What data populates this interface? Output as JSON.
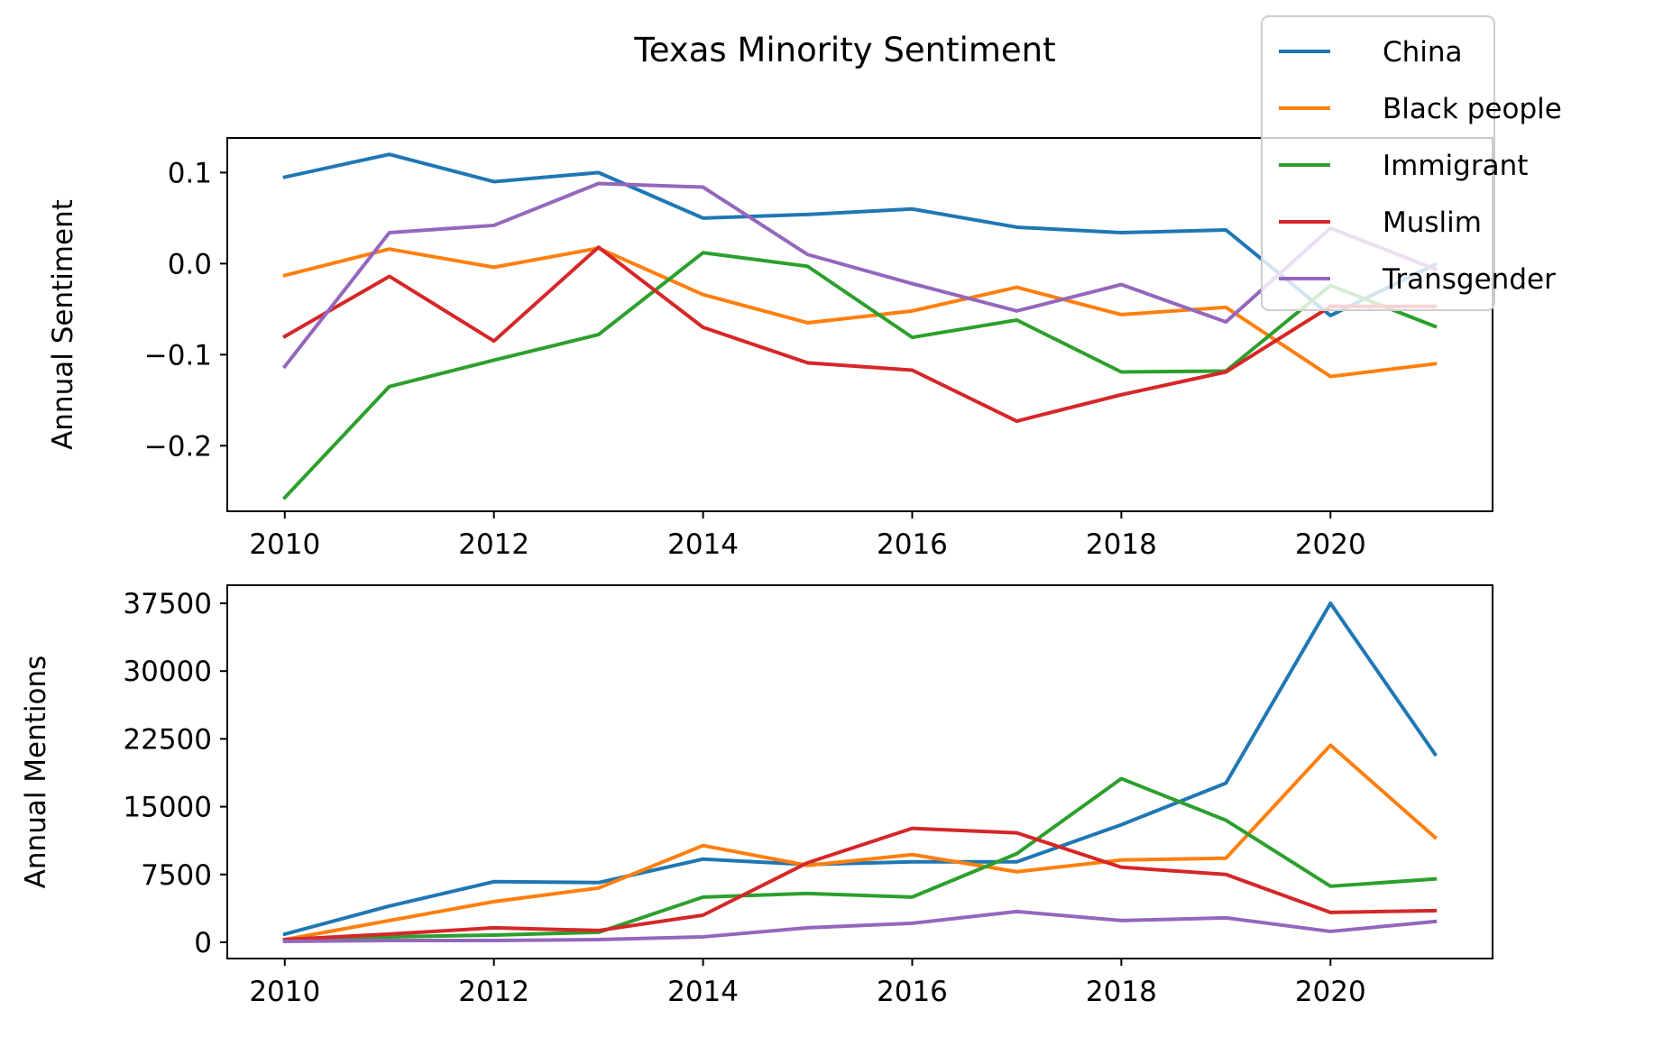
{
  "figure": {
    "title": "Texas Minority Sentiment"
  },
  "legend": {
    "placement": "top-right",
    "entries": [
      {
        "name": "China",
        "color": "#1f77b4"
      },
      {
        "name": "Black people",
        "color": "#ff7f0e"
      },
      {
        "name": "Immigrant",
        "color": "#2ca02c"
      },
      {
        "name": "Muslim",
        "color": "#d62728"
      },
      {
        "name": "Transgender",
        "color": "#9467bd"
      }
    ]
  },
  "chart_data": [
    {
      "type": "line",
      "ylabel": "Annual Sentiment",
      "xlabel": "",
      "x": [
        2010,
        2011,
        2012,
        2013,
        2014,
        2015,
        2016,
        2017,
        2018,
        2019,
        2020,
        2021
      ],
      "xlim": [
        2009.45,
        2021.55
      ],
      "ylim": [
        -0.272,
        0.138
      ],
      "xticks": [
        2010,
        2012,
        2014,
        2016,
        2018,
        2020
      ],
      "xtick_labels": [
        "2010",
        "2012",
        "2014",
        "2016",
        "2018",
        "2020"
      ],
      "yticks": [
        0.1,
        0.0,
        -0.1,
        -0.2
      ],
      "ytick_labels": [
        "0.1",
        "0.0",
        "−0.1",
        "−0.2"
      ],
      "grid": false,
      "series": [
        {
          "name": "China",
          "color": "#1f77b4",
          "values": [
            0.095,
            0.12,
            0.09,
            0.1,
            0.05,
            0.054,
            0.06,
            0.04,
            0.034,
            0.037,
            -0.057,
            -0.001
          ]
        },
        {
          "name": "Black people",
          "color": "#ff7f0e",
          "values": [
            -0.013,
            0.016,
            -0.004,
            0.017,
            -0.034,
            -0.065,
            -0.052,
            -0.026,
            -0.056,
            -0.048,
            -0.124,
            -0.11
          ]
        },
        {
          "name": "Immigrant",
          "color": "#2ca02c",
          "values": [
            -0.257,
            -0.135,
            -0.106,
            -0.078,
            0.012,
            -0.003,
            -0.081,
            -0.062,
            -0.119,
            -0.118,
            -0.024,
            -0.069
          ]
        },
        {
          "name": "Muslim",
          "color": "#d62728",
          "values": [
            -0.08,
            -0.014,
            -0.085,
            0.018,
            -0.07,
            -0.109,
            -0.117,
            -0.173,
            -0.144,
            -0.119,
            -0.047,
            -0.047
          ]
        },
        {
          "name": "Transgender",
          "color": "#9467bd",
          "values": [
            -0.113,
            0.034,
            0.042,
            0.088,
            0.084,
            0.01,
            -0.022,
            -0.052,
            -0.023,
            -0.064,
            0.039,
            -0.006
          ]
        }
      ]
    },
    {
      "type": "line",
      "ylabel": "Annual Mentions",
      "xlabel": "",
      "x": [
        2010,
        2011,
        2012,
        2013,
        2014,
        2015,
        2016,
        2017,
        2018,
        2019,
        2020,
        2021
      ],
      "xlim": [
        2009.45,
        2021.55
      ],
      "ylim": [
        -1800,
        39500
      ],
      "xticks": [
        2010,
        2012,
        2014,
        2016,
        2018,
        2020
      ],
      "xtick_labels": [
        "2010",
        "2012",
        "2014",
        "2016",
        "2018",
        "2020"
      ],
      "yticks": [
        37500,
        30000,
        22500,
        15000,
        7500,
        0
      ],
      "ytick_labels": [
        "37500",
        "30000",
        "22500",
        "15000",
        "7500",
        "0"
      ],
      "grid": false,
      "series": [
        {
          "name": "China",
          "color": "#1f77b4",
          "values": [
            900,
            4000,
            6700,
            6600,
            9200,
            8600,
            8900,
            8900,
            13000,
            17600,
            37500,
            20800
          ]
        },
        {
          "name": "Black people",
          "color": "#ff7f0e",
          "values": [
            300,
            2400,
            4500,
            6000,
            10700,
            8500,
            9700,
            7800,
            9100,
            9300,
            21800,
            11600
          ]
        },
        {
          "name": "Immigrant",
          "color": "#2ca02c",
          "values": [
            200,
            600,
            800,
            1100,
            5000,
            5400,
            5000,
            9800,
            18100,
            13500,
            6200,
            7000
          ]
        },
        {
          "name": "Muslim",
          "color": "#d62728",
          "values": [
            300,
            900,
            1600,
            1300,
            3000,
            8800,
            12600,
            12100,
            8300,
            7500,
            3300,
            3500
          ]
        },
        {
          "name": "Transgender",
          "color": "#9467bd",
          "values": [
            100,
            200,
            200,
            300,
            600,
            1600,
            2100,
            3400,
            2400,
            2700,
            1200,
            2300
          ]
        }
      ]
    }
  ]
}
